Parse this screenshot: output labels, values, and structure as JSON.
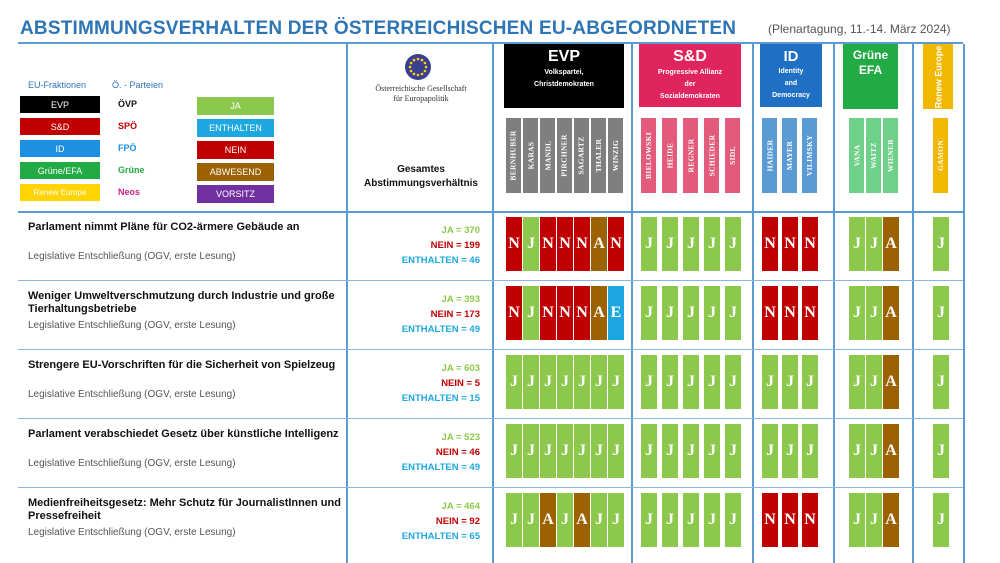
{
  "header": {
    "title": "ABSTIMMUNGSVERHALTEN DER ÖSTERREICHISCHEN  EU-ABGEORDNETEN",
    "subtitle": "(Plenartagung, 11.-14. März 2024)"
  },
  "legend": {
    "fraktionen_header": "EU-Fraktionen",
    "parteien_header": "Ö. - Parteien",
    "groups": [
      {
        "label": "EVP",
        "color": "#000000",
        "party": "ÖVP",
        "party_color": "#111111"
      },
      {
        "label": "S&D",
        "color": "#c00000",
        "party": "SPÖ",
        "party_color": "#c00000"
      },
      {
        "label": "ID",
        "color": "#1e8fe1",
        "party": "FPÖ",
        "party_color": "#1e8fe1"
      },
      {
        "label": "Grüne/EFA",
        "color": "#22aa44",
        "party": "Grüne",
        "party_color": "#22aa44"
      },
      {
        "label": "Renew Europe",
        "color": "#ffd400",
        "party": "Neos",
        "party_color": "#cc2288"
      }
    ],
    "votes": [
      {
        "label": "JA",
        "color": "#8cc84b"
      },
      {
        "label": "ENTHALTEN",
        "color": "#1ca7e0"
      },
      {
        "label": "NEIN",
        "color": "#c00000"
      },
      {
        "label": "ABWESEND",
        "color": "#9c6100"
      },
      {
        "label": "VORSITZ",
        "color": "#7030a0"
      }
    ]
  },
  "society": {
    "name_line1": "Österreichische Gesellschaft",
    "name_line2": "für Europapolitik",
    "logo_icon": "eu-stars-icon"
  },
  "total_header": {
    "line1": "Gesamtes",
    "line2": "Abstimmungsverhältnis"
  },
  "groups": [
    {
      "name": "EVP",
      "desc1": "Volkspartei,",
      "desc2": "Christdemokraten",
      "desc3": "",
      "color": "#000000",
      "mep_color": "#7f7f7f",
      "meps": [
        "BERNHUBER",
        "KARAS",
        "MANDL",
        "PIRCHNER",
        "SAGARTZ",
        "THALER",
        "WINZIG"
      ]
    },
    {
      "name": "S&D",
      "desc1": "Progressive Allianz",
      "desc2": "der",
      "desc3": "Sozialdemokraten",
      "color": "#e0245e",
      "mep_color": "#e35b7a",
      "meps": [
        "BIELOWSKI",
        "HEIDE",
        "REGNER",
        "SCHIEDER",
        "SIDL"
      ]
    },
    {
      "name": "ID",
      "desc1": "Identity",
      "desc2": "and",
      "desc3": "Democracy",
      "color": "#1f6fc5",
      "mep_color": "#5b9bd5",
      "meps": [
        "HAIDER",
        "MAYER",
        "VILIMSKY"
      ]
    },
    {
      "name": "Grüne",
      "desc1": "EFA",
      "desc2": "",
      "desc3": "",
      "color": "#22aa44",
      "mep_color": "#6fd08a",
      "meps": [
        "VANA",
        "WAITZ",
        "WIENER"
      ]
    },
    {
      "name": "Renew Europe",
      "desc1": "",
      "desc2": "",
      "desc3": "",
      "color": "#f2b800",
      "mep_color": "#f2b800",
      "meps": [
        "GAMON"
      ]
    }
  ],
  "vote_letters": {
    "J": "J",
    "N": "N",
    "E": "E",
    "A": "A"
  },
  "rows": [
    {
      "title": "Parlament nimmt Pläne für CO2-ärmere Gebäude an",
      "subtitle": "Legislative Entschließung (OGV, erste Lesung)",
      "ja": "JA = 370",
      "nein": "NEIN = 199",
      "enthalten": "ENTHALTEN  = 46",
      "votes": [
        "N",
        "J",
        "N",
        "N",
        "N",
        "A",
        "N",
        "J",
        "J",
        "J",
        "J",
        "J",
        "N",
        "N",
        "N",
        "J",
        "J",
        "A",
        "J"
      ]
    },
    {
      "title": "Weniger Umweltverschmutzung durch Industrie und große Tierhaltungsbetriebe",
      "subtitle": "Legislative Entschließung (OGV, erste Lesung)",
      "ja": "JA = 393",
      "nein": "NEIN = 173",
      "enthalten": "ENTHALTEN  = 49",
      "votes": [
        "N",
        "J",
        "N",
        "N",
        "N",
        "A",
        "E",
        "J",
        "J",
        "J",
        "J",
        "J",
        "N",
        "N",
        "N",
        "J",
        "J",
        "A",
        "J"
      ]
    },
    {
      "title": "Strengere EU-Vorschriften für die Sicherheit von Spielzeug",
      "subtitle": "Legislative Entschließung (OGV, erste Lesung)",
      "ja": "JA = 603",
      "nein": "NEIN = 5",
      "enthalten": "ENTHALTEN  = 15",
      "votes": [
        "J",
        "J",
        "J",
        "J",
        "J",
        "J",
        "J",
        "J",
        "J",
        "J",
        "J",
        "J",
        "J",
        "J",
        "J",
        "J",
        "J",
        "A",
        "J"
      ]
    },
    {
      "title": "Parlament verabschiedet Gesetz über künstliche Intelligenz",
      "subtitle": "Legislative Entschließung (OGV, erste Lesung)",
      "ja": "JA = 523",
      "nein": "NEIN = 46",
      "enthalten": "ENTHALTEN  = 49",
      "votes": [
        "J",
        "J",
        "J",
        "J",
        "J",
        "J",
        "J",
        "J",
        "J",
        "J",
        "J",
        "J",
        "J",
        "J",
        "J",
        "J",
        "J",
        "A",
        "J"
      ]
    },
    {
      "title": "Medienfreiheitsgesetz: Mehr Schutz für JournalistInnen und Pressefreiheit",
      "subtitle": "Legislative Entschließung (OGV, erste Lesung)",
      "ja": "JA = 464",
      "nein": "NEIN = 92",
      "enthalten": "ENTHALTEN  = 65",
      "votes": [
        "J",
        "J",
        "A",
        "J",
        "A",
        "J",
        "J",
        "J",
        "J",
        "J",
        "J",
        "J",
        "N",
        "N",
        "N",
        "J",
        "J",
        "A",
        "J"
      ]
    }
  ]
}
